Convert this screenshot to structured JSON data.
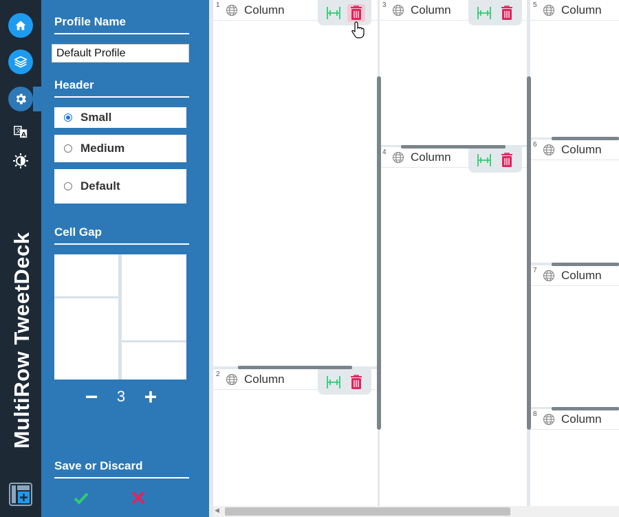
{
  "app": {
    "brand": "MultiRow TweetDeck"
  },
  "nav": {
    "items": [
      {
        "name": "home",
        "icon": "home-icon"
      },
      {
        "name": "layers",
        "icon": "layers-icon"
      },
      {
        "name": "settings",
        "icon": "gear-icon"
      },
      {
        "name": "translate",
        "icon": "translate-icon"
      },
      {
        "name": "theme",
        "icon": "brightness-icon"
      }
    ],
    "footer_icon": "add-layout-icon"
  },
  "panel": {
    "profile_name_title": "Profile Name",
    "profile_name_value": "Default Profile",
    "header_title": "Header",
    "header_options": [
      {
        "label": "Small",
        "selected": true
      },
      {
        "label": "Medium",
        "selected": false
      },
      {
        "label": "Default",
        "selected": false
      }
    ],
    "cell_gap_title": "Cell Gap",
    "cell_gap_minus": "−",
    "cell_gap_value": "3",
    "cell_gap_plus": "+",
    "save_title": "Save or Discard",
    "save_icon": "check-icon",
    "discard_icon": "close-icon"
  },
  "columns": [
    {
      "num": "1",
      "title": "Column"
    },
    {
      "num": "2",
      "title": "Column"
    },
    {
      "num": "3",
      "title": "Column"
    },
    {
      "num": "4",
      "title": "Column"
    },
    {
      "num": "5",
      "title": "Column"
    },
    {
      "num": "6",
      "title": "Column"
    },
    {
      "num": "7",
      "title": "Column"
    },
    {
      "num": "8",
      "title": "Column"
    }
  ],
  "colors": {
    "nav_bg": "#1d2a36",
    "panel_bg": "#2d79b7",
    "accent": "#1d9bf0",
    "split": "#2ecc71",
    "delete": "#e0245e"
  }
}
